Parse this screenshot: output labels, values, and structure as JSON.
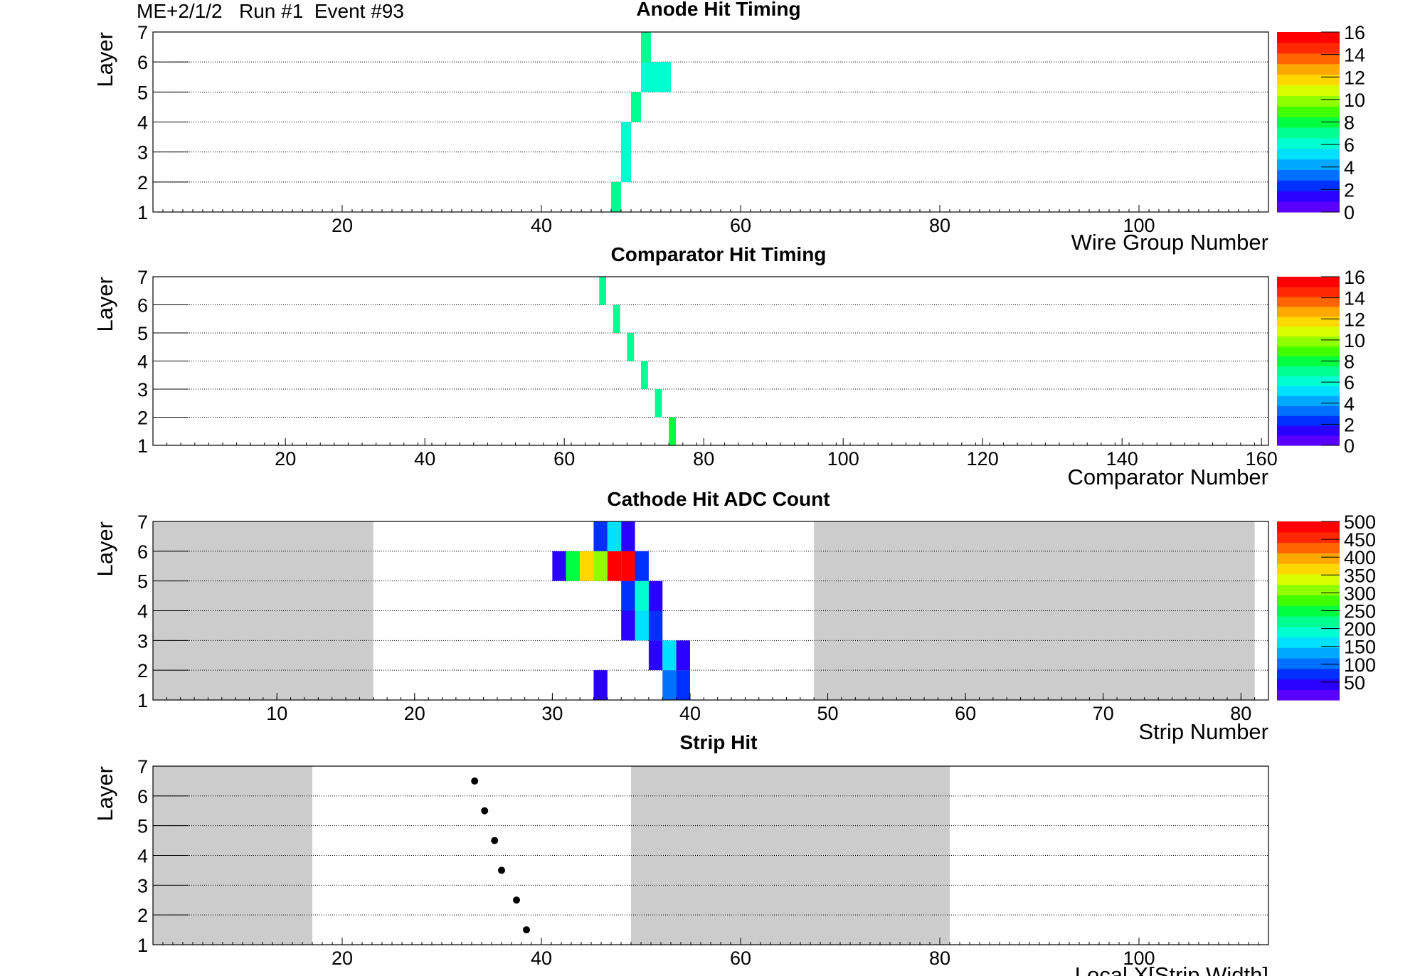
{
  "header": {
    "chamber": "ME+2/1/2",
    "run": "Run #1",
    "event": "Event #93"
  },
  "chart_data": [
    {
      "type": "heatmap",
      "title": "Anode Hit Timing",
      "xlabel": "Wire Group Number",
      "ylabel": "Layer",
      "xlim": [
        1,
        113
      ],
      "ylim": [
        1,
        7
      ],
      "xticks": [
        20,
        40,
        60,
        80,
        100
      ],
      "yticks": [
        1,
        2,
        3,
        4,
        5,
        6,
        7
      ],
      "palette": [
        "#5a00ff",
        "#2a00ff",
        "#0030ff",
        "#0070ff",
        "#00a8ff",
        "#00e0ff",
        "#00ffd0",
        "#00ff90",
        "#00ff40",
        "#40ff00",
        "#90ff00",
        "#d8ff00",
        "#ffd800",
        "#ffa800",
        "#ff6400",
        "#ff2800",
        "#ff0000"
      ],
      "colorbar": {
        "min": 0,
        "max": 16,
        "ticks": [
          0,
          2,
          4,
          6,
          8,
          10,
          12,
          14,
          16
        ]
      },
      "cells": [
        {
          "x": 47,
          "layer": 1,
          "value": 7
        },
        {
          "x": 48,
          "layer": 2,
          "value": 6
        },
        {
          "x": 48,
          "layer": 3,
          "value": 6
        },
        {
          "x": 49,
          "layer": 4,
          "value": 7
        },
        {
          "x": 50,
          "layer": 5,
          "value": 6
        },
        {
          "x": 51,
          "layer": 5,
          "value": 6
        },
        {
          "x": 52,
          "layer": 5,
          "value": 6
        },
        {
          "x": 50,
          "layer": 6,
          "value": 7
        }
      ]
    },
    {
      "type": "heatmap",
      "title": "Comparator Hit Timing",
      "xlabel": "Comparator Number",
      "ylabel": "Layer",
      "xlim": [
        1,
        161
      ],
      "ylim": [
        1,
        7
      ],
      "xticks": [
        20,
        40,
        60,
        80,
        100,
        120,
        140,
        160
      ],
      "yticks": [
        1,
        2,
        3,
        4,
        5,
        6,
        7
      ],
      "palette": [
        "#5a00ff",
        "#2a00ff",
        "#0030ff",
        "#0070ff",
        "#00a8ff",
        "#00e0ff",
        "#00ffd0",
        "#00ff90",
        "#00ff40",
        "#40ff00",
        "#90ff00",
        "#d8ff00",
        "#ffd800",
        "#ffa800",
        "#ff6400",
        "#ff2800",
        "#ff0000"
      ],
      "colorbar": {
        "min": 0,
        "max": 16,
        "ticks": [
          0,
          2,
          4,
          6,
          8,
          10,
          12,
          14,
          16
        ]
      },
      "cells": [
        {
          "x": 75,
          "layer": 1,
          "value": 8
        },
        {
          "x": 73,
          "layer": 2,
          "value": 7
        },
        {
          "x": 71,
          "layer": 3,
          "value": 7
        },
        {
          "x": 69,
          "layer": 4,
          "value": 7
        },
        {
          "x": 67,
          "layer": 5,
          "value": 7
        },
        {
          "x": 65,
          "layer": 6,
          "value": 7
        }
      ]
    },
    {
      "type": "heatmap",
      "title": "Cathode Hit ADC Count",
      "xlabel": "Strip Number",
      "ylabel": "Layer",
      "xlim": [
        1,
        82
      ],
      "ylim": [
        1,
        7
      ],
      "xticks": [
        10,
        20,
        30,
        40,
        50,
        60,
        70,
        80
      ],
      "yticks": [
        1,
        2,
        3,
        4,
        5,
        6,
        7
      ],
      "shaded_x": [
        [
          1,
          17
        ],
        [
          49,
          81
        ]
      ],
      "palette": [
        "#5a00ff",
        "#2a00ff",
        "#0030ff",
        "#0070ff",
        "#00a8ff",
        "#00e0ff",
        "#00ffd0",
        "#00ff90",
        "#00ff40",
        "#40ff00",
        "#90ff00",
        "#d8ff00",
        "#ffd800",
        "#ffa800",
        "#ff6400",
        "#ff2800",
        "#ff0000"
      ],
      "colorbar": {
        "min": 0,
        "max": 500,
        "ticks": [
          50,
          100,
          150,
          200,
          250,
          300,
          350,
          400,
          450,
          500
        ]
      },
      "cells": [
        {
          "x": 33,
          "layer": 1,
          "value": 40
        },
        {
          "x": 38,
          "layer": 1,
          "value": 100
        },
        {
          "x": 39,
          "layer": 1,
          "value": 70
        },
        {
          "x": 37,
          "layer": 2,
          "value": 40
        },
        {
          "x": 38,
          "layer": 2,
          "value": 150
        },
        {
          "x": 39,
          "layer": 2,
          "value": 40
        },
        {
          "x": 35,
          "layer": 3,
          "value": 40
        },
        {
          "x": 36,
          "layer": 3,
          "value": 170
        },
        {
          "x": 37,
          "layer": 3,
          "value": 70
        },
        {
          "x": 35,
          "layer": 4,
          "value": 70
        },
        {
          "x": 36,
          "layer": 4,
          "value": 190
        },
        {
          "x": 37,
          "layer": 4,
          "value": 40
        },
        {
          "x": 30,
          "layer": 5,
          "value": 40
        },
        {
          "x": 31,
          "layer": 5,
          "value": 250
        },
        {
          "x": 32,
          "layer": 5,
          "value": 370
        },
        {
          "x": 33,
          "layer": 5,
          "value": 320
        },
        {
          "x": 34,
          "layer": 5,
          "value": 500
        },
        {
          "x": 35,
          "layer": 5,
          "value": 500
        },
        {
          "x": 36,
          "layer": 5,
          "value": 70
        },
        {
          "x": 33,
          "layer": 6,
          "value": 70
        },
        {
          "x": 34,
          "layer": 6,
          "value": 150
        },
        {
          "x": 35,
          "layer": 6,
          "value": 40
        }
      ]
    },
    {
      "type": "scatter",
      "title": "Strip Hit",
      "xlabel": "Local X[Strip Width]",
      "ylabel": "Layer",
      "xlim": [
        1,
        113
      ],
      "ylim": [
        1,
        7
      ],
      "xticks": [
        20,
        40,
        60,
        80,
        100
      ],
      "yticks": [
        1,
        2,
        3,
        4,
        5,
        6,
        7
      ],
      "shaded_x": [
        [
          1,
          17
        ],
        [
          49,
          81
        ]
      ],
      "points": [
        {
          "x": 38.5,
          "y": 1.5
        },
        {
          "x": 37.5,
          "y": 2.5
        },
        {
          "x": 36.0,
          "y": 3.5
        },
        {
          "x": 35.3,
          "y": 4.5
        },
        {
          "x": 34.3,
          "y": 5.5
        },
        {
          "x": 33.3,
          "y": 6.5
        }
      ]
    }
  ]
}
